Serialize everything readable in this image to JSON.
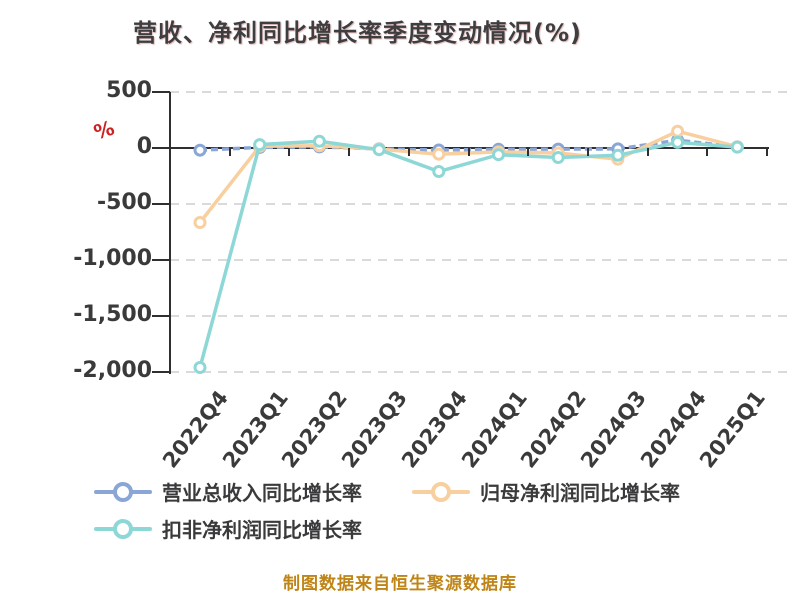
{
  "title": {
    "text": "营收、净利同比增长率季度变动情况(%)"
  },
  "y_axis": {
    "label": "%",
    "label_color": "#cc2222",
    "ticks": [
      "500",
      "0",
      "-500",
      "-1,000",
      "-1,500",
      "-2,000"
    ]
  },
  "footer": {
    "text": "制图数据来自恒生聚源数据库",
    "color": "#bf8517"
  },
  "colors": {
    "revenue_series": "#8aa6d6",
    "net_profit_series": "#f8cf9f",
    "deducted_net_profit_series": "#8ed7d7",
    "grid": "#dadada",
    "axis": "#2f2f31",
    "text": "#3a3a3c",
    "y_label_red": "#cc2222",
    "footer_orange": "#bf8517",
    "marker_fill": "#ffffff"
  },
  "chart_data": {
    "type": "line",
    "title": "营收、净利同比增长率季度变动情况(%)",
    "categories": [
      "2022Q4",
      "2023Q1",
      "2023Q2",
      "2023Q3",
      "2023Q4",
      "2024Q1",
      "2024Q2",
      "2024Q3",
      "2024Q4",
      "2025Q1"
    ],
    "series": [
      {
        "name": "营业总收入同比增长率",
        "id": "revenue-growth",
        "color": "#8aa6d6",
        "line_style": "dashed",
        "values": [
          -20,
          5,
          10,
          -8,
          -18,
          -12,
          -10,
          -8,
          70,
          10
        ]
      },
      {
        "name": "归母净利润同比增长率",
        "id": "net-profit-growth",
        "color": "#f8cf9f",
        "line_style": "solid",
        "values": [
          -665,
          15,
          20,
          -10,
          -55,
          -35,
          -45,
          -100,
          150,
          12
        ]
      },
      {
        "name": "扣非净利润同比增长率",
        "id": "deducted-net-profit-growth",
        "color": "#8ed7d7",
        "line_style": "solid",
        "values": [
          -1960,
          30,
          60,
          -15,
          -210,
          -60,
          -85,
          -65,
          50,
          8
        ]
      }
    ],
    "ylabel": "%",
    "ylim": [
      -2000,
      500
    ],
    "y_tick_values": [
      500,
      0,
      -500,
      -1000,
      -1500,
      -2000
    ],
    "grid": {
      "horizontal": true,
      "style": "dashed",
      "color": "#dadada"
    },
    "legend_position": "bottom-left",
    "marker": {
      "shape": "circle",
      "fill": "#ffffff"
    }
  }
}
